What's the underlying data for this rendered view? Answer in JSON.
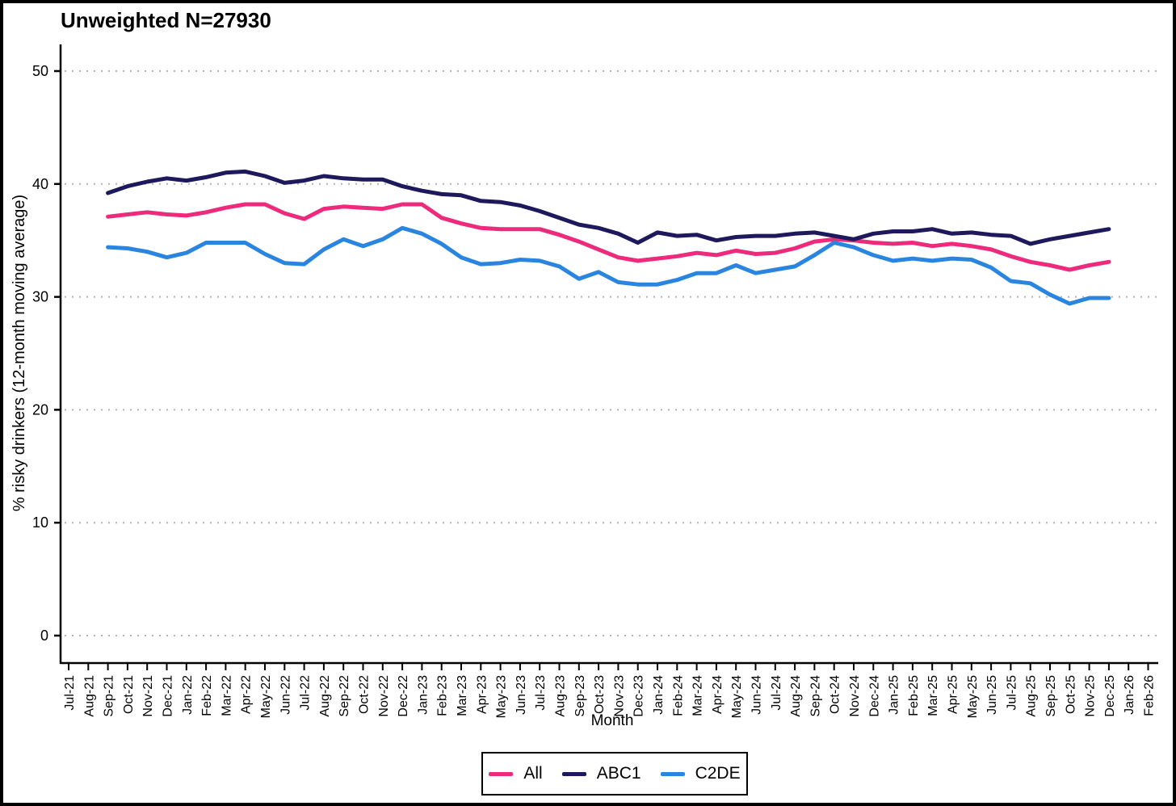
{
  "title": "Unweighted N=27930",
  "axes": {
    "x_label": "Month",
    "y_label": "% risky drinkers (12-month moving average)"
  },
  "colors": {
    "background": "#ffffff",
    "axis": "#000000",
    "grid_dots": "#b3b3b3",
    "all": "#ee2a7c",
    "abc1": "#1d195c",
    "c2de": "#2a85e0"
  },
  "legend": {
    "position": "bottom-center",
    "items": [
      {
        "label": "All",
        "color": "#ee2a7c"
      },
      {
        "label": "ABC1",
        "color": "#1d195c"
      },
      {
        "label": "C2DE",
        "color": "#2a85e0"
      }
    ]
  },
  "chart_data": {
    "type": "line",
    "title": "Unweighted N=27930",
    "xlabel": "Month",
    "ylabel": "% risky drinkers (12-month moving average)",
    "grid": "horizontal-dotted",
    "legend_position": "bottom-center",
    "ylim": [
      0,
      50
    ],
    "y_ticks": [
      0,
      10,
      20,
      30,
      40,
      50
    ],
    "x_ticks": [
      "Jul-21",
      "Aug-21",
      "Sep-21",
      "Oct-21",
      "Nov-21",
      "Dec-21",
      "Jan-22",
      "Feb-22",
      "Mar-22",
      "Apr-22",
      "May-22",
      "Jun-22",
      "Jul-22",
      "Aug-22",
      "Sep-22",
      "Oct-22",
      "Nov-22",
      "Dec-22",
      "Jan-23",
      "Feb-23",
      "Mar-23",
      "Apr-23",
      "May-23",
      "Jun-23",
      "Jul-23",
      "Aug-23",
      "Sep-23",
      "Oct-23",
      "Nov-23",
      "Dec-23",
      "Jan-24",
      "Feb-24",
      "Mar-24",
      "Apr-24",
      "May-24",
      "Jun-24",
      "Jul-24",
      "Aug-24",
      "Sep-24",
      "Oct-24",
      "Nov-24",
      "Dec-24",
      "Jan-25",
      "Feb-25",
      "Mar-25",
      "Apr-25",
      "May-25",
      "Jun-25",
      "Jul-25",
      "Aug-25",
      "Sep-25",
      "Oct-25",
      "Nov-25",
      "Dec-25",
      "Jan-26",
      "Feb-26"
    ],
    "categories": [
      "Sep-21",
      "Oct-21",
      "Nov-21",
      "Dec-21",
      "Jan-22",
      "Feb-22",
      "Mar-22",
      "Apr-22",
      "May-22",
      "Jun-22",
      "Jul-22",
      "Aug-22",
      "Sep-22",
      "Oct-22",
      "Nov-22",
      "Dec-22",
      "Jan-23",
      "Feb-23",
      "Mar-23",
      "Apr-23",
      "May-23",
      "Jun-23",
      "Jul-23",
      "Aug-23",
      "Sep-23",
      "Oct-23",
      "Nov-23",
      "Dec-23",
      "Jan-24",
      "Feb-24",
      "Mar-24",
      "Apr-24",
      "May-24",
      "Jun-24",
      "Jul-24",
      "Aug-24",
      "Sep-24",
      "Oct-24",
      "Nov-24",
      "Dec-24",
      "Jan-25",
      "Feb-25",
      "Mar-25",
      "Apr-25",
      "May-25",
      "Jun-25",
      "Jul-25",
      "Aug-25",
      "Sep-25",
      "Oct-25",
      "Nov-25",
      "Dec-25"
    ],
    "series": [
      {
        "name": "All",
        "color": "#ee2a7c",
        "values": [
          37.1,
          37.3,
          37.5,
          37.3,
          37.2,
          37.5,
          37.9,
          38.2,
          38.2,
          37.4,
          36.9,
          37.8,
          38.0,
          37.9,
          37.8,
          38.2,
          38.2,
          37.0,
          36.5,
          36.1,
          36.0,
          36.0,
          36.0,
          35.5,
          34.9,
          34.2,
          33.5,
          33.2,
          33.4,
          33.6,
          33.9,
          33.7,
          34.1,
          33.8,
          33.9,
          34.3,
          34.9,
          35.1,
          35.0,
          34.8,
          34.7,
          34.8,
          34.5,
          34.7,
          34.5,
          34.2,
          33.6,
          33.1,
          32.8,
          32.4,
          32.8,
          33.1
        ]
      },
      {
        "name": "ABC1",
        "color": "#1d195c",
        "values": [
          39.2,
          39.8,
          40.2,
          40.5,
          40.3,
          40.6,
          41.0,
          41.1,
          40.7,
          40.1,
          40.3,
          40.7,
          40.5,
          40.4,
          40.4,
          39.8,
          39.4,
          39.1,
          39.0,
          38.5,
          38.4,
          38.1,
          37.6,
          37.0,
          36.4,
          36.1,
          35.6,
          34.8,
          35.7,
          35.4,
          35.5,
          35.0,
          35.3,
          35.4,
          35.4,
          35.6,
          35.7,
          35.4,
          35.1,
          35.6,
          35.8,
          35.8,
          36.0,
          35.6,
          35.7,
          35.5,
          35.4,
          34.7,
          35.1,
          35.4,
          35.7,
          36.0
        ]
      },
      {
        "name": "C2DE",
        "color": "#2a85e0",
        "values": [
          34.4,
          34.3,
          34.0,
          33.5,
          33.9,
          34.8,
          34.8,
          34.8,
          33.8,
          33.0,
          32.9,
          34.2,
          35.1,
          34.5,
          35.1,
          36.1,
          35.6,
          34.7,
          33.5,
          32.9,
          33.0,
          33.3,
          33.2,
          32.7,
          31.6,
          32.2,
          31.3,
          31.1,
          31.1,
          31.5,
          32.1,
          32.1,
          32.8,
          32.1,
          32.4,
          32.7,
          33.7,
          34.8,
          34.4,
          33.7,
          33.2,
          33.4,
          33.2,
          33.4,
          33.3,
          32.6,
          31.4,
          31.2,
          30.2,
          29.4,
          29.9,
          29.9
        ]
      }
    ]
  }
}
